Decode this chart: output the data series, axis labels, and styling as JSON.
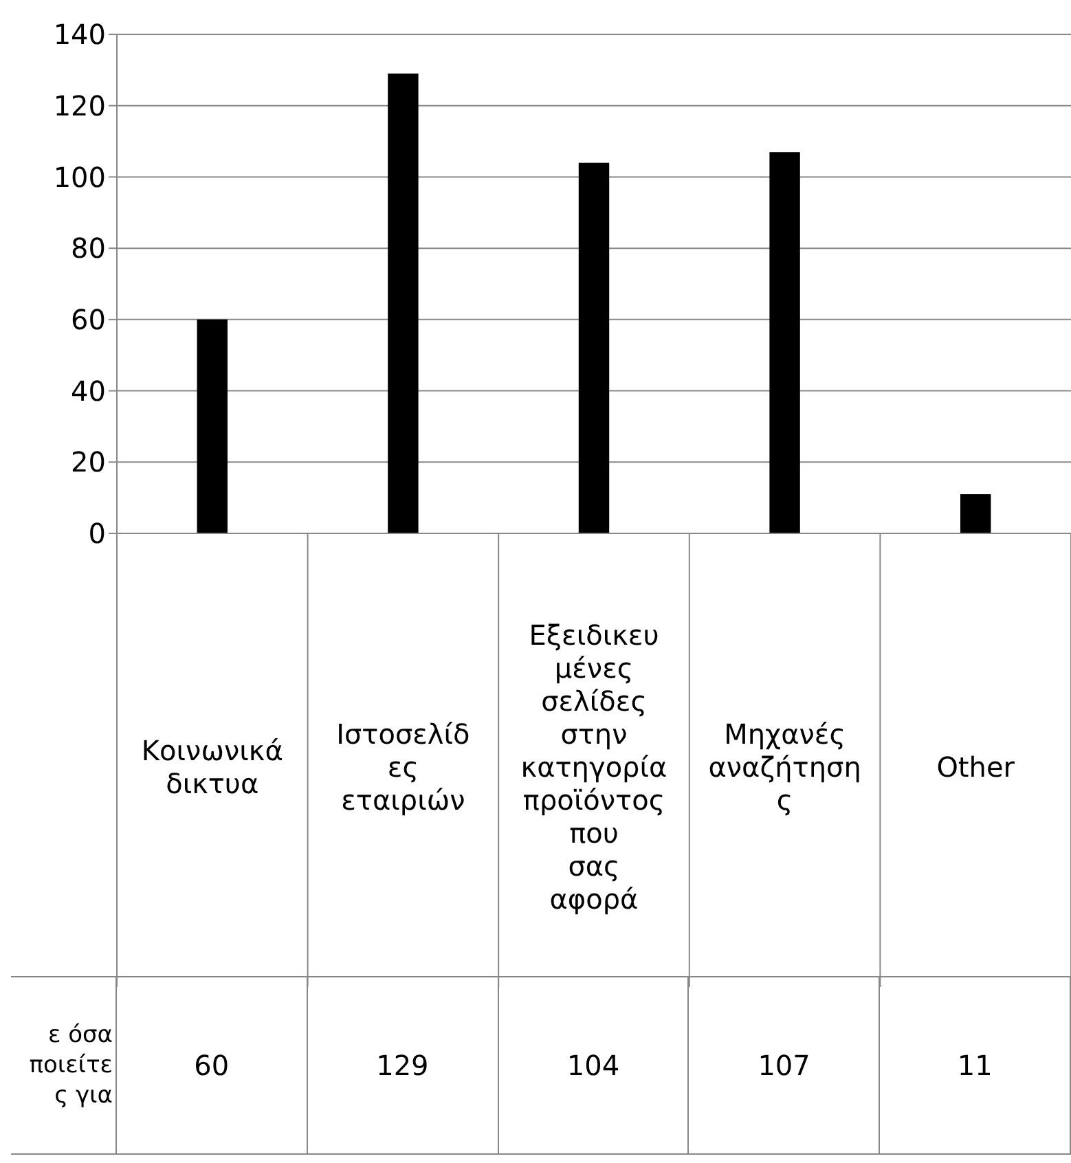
{
  "chart_data": {
    "type": "bar",
    "categories": [
      "Κοινωνικά δικτυα",
      "Ιστοσελίδες εταιριών",
      "Εξειδικευμένες σελίδες στην κατηγορία προϊόντος που σας αφορά",
      "Μηχανές αναζήτησης",
      "Other"
    ],
    "series": [
      {
        "name": "ε όσα ποιείτε ς για",
        "color": "#000000",
        "values": [
          60,
          129,
          104,
          107,
          11
        ]
      }
    ],
    "ylim": [
      0,
      140
    ],
    "yticks": [
      0,
      20,
      40,
      60,
      80,
      100,
      120,
      140
    ],
    "grid": "y",
    "data_labels": true
  }
}
